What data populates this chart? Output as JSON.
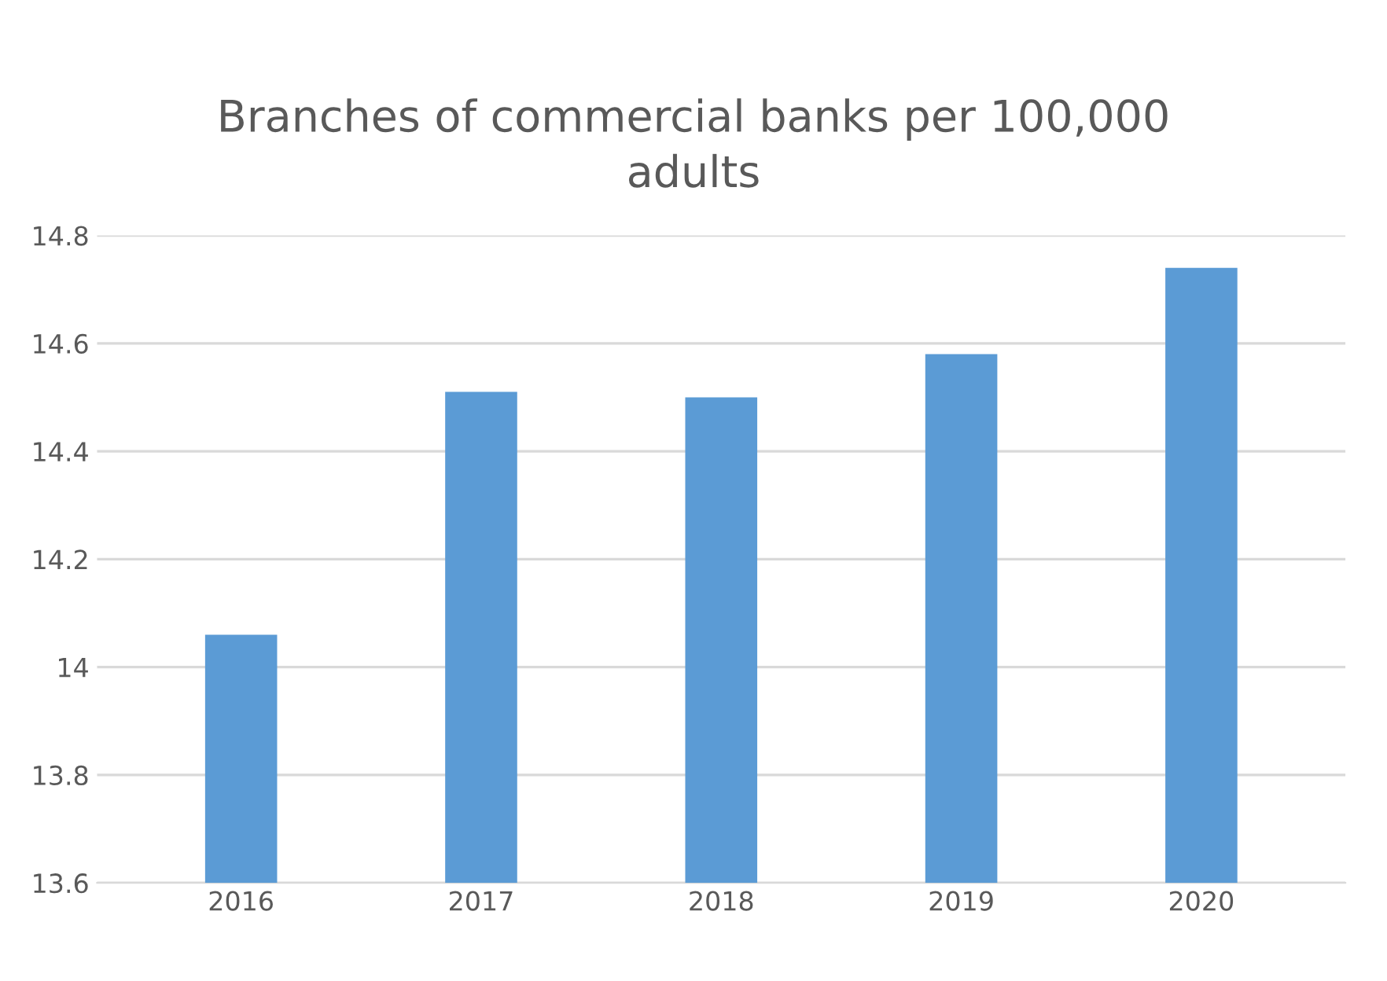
{
  "chart_data": {
    "type": "bar",
    "title": "Branches of commercial banks per 100,000\nadults",
    "categories": [
      "2016",
      "2017",
      "2018",
      "2019",
      "2020"
    ],
    "values": [
      14.06,
      14.51,
      14.5,
      14.58,
      14.74
    ],
    "color": "#5b9bd5",
    "ylim": [
      13.6,
      14.8
    ],
    "yticks": [
      13.6,
      13.8,
      14,
      14.2,
      14.4,
      14.6,
      14.8
    ],
    "grid": "y"
  }
}
